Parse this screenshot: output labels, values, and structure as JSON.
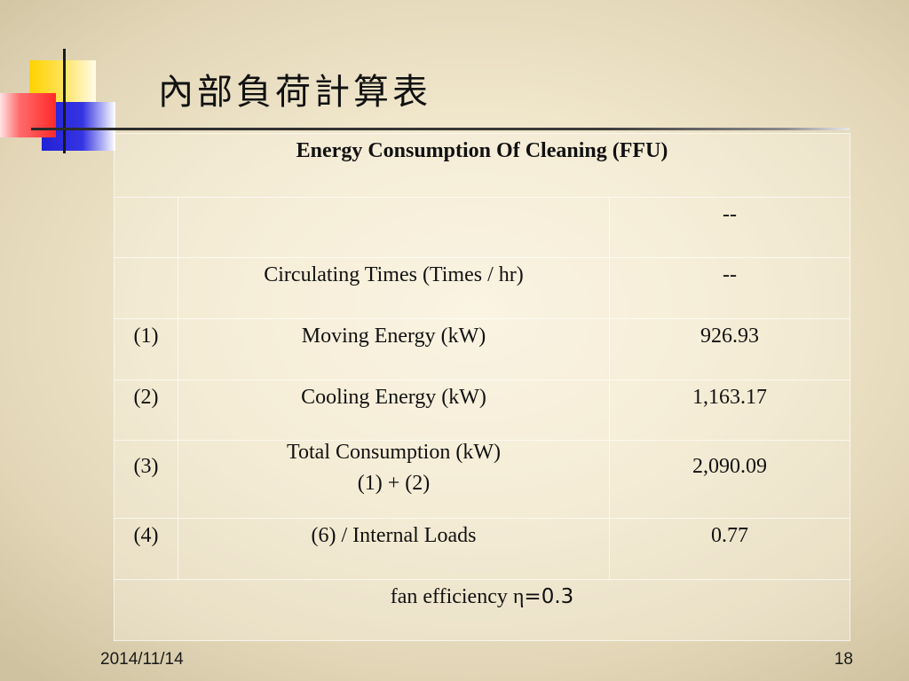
{
  "slide": {
    "title": "內部負荷計算表",
    "date": "2014/11/14",
    "page_number": "18"
  },
  "table": {
    "header": "Energy Consumption Of Cleaning (FFU)",
    "rows": [
      {
        "value": "--"
      },
      {
        "item": "Circulating Times (Times / hr)",
        "value": "--"
      },
      {
        "index": "(1)",
        "item": "Moving Energy (kW)",
        "value": "926.93"
      },
      {
        "index": "(2)",
        "item": "Cooling Energy (kW)",
        "value": "1,163.17"
      },
      {
        "index": "(3)",
        "item": [
          "Total Consumption (kW)",
          "(1) + (2)"
        ],
        "value": "2,090.09"
      },
      {
        "index": "(4)",
        "item": "(6) / Internal Loads",
        "value": "0.77"
      }
    ],
    "footer_label": "fan efficiency η",
    "footer_value": "=0.3"
  },
  "colors": {
    "logo_yellow": "#ffd200",
    "logo_red": "#ff2a2a",
    "logo_blue": "#2222d6",
    "text": "#111111"
  }
}
